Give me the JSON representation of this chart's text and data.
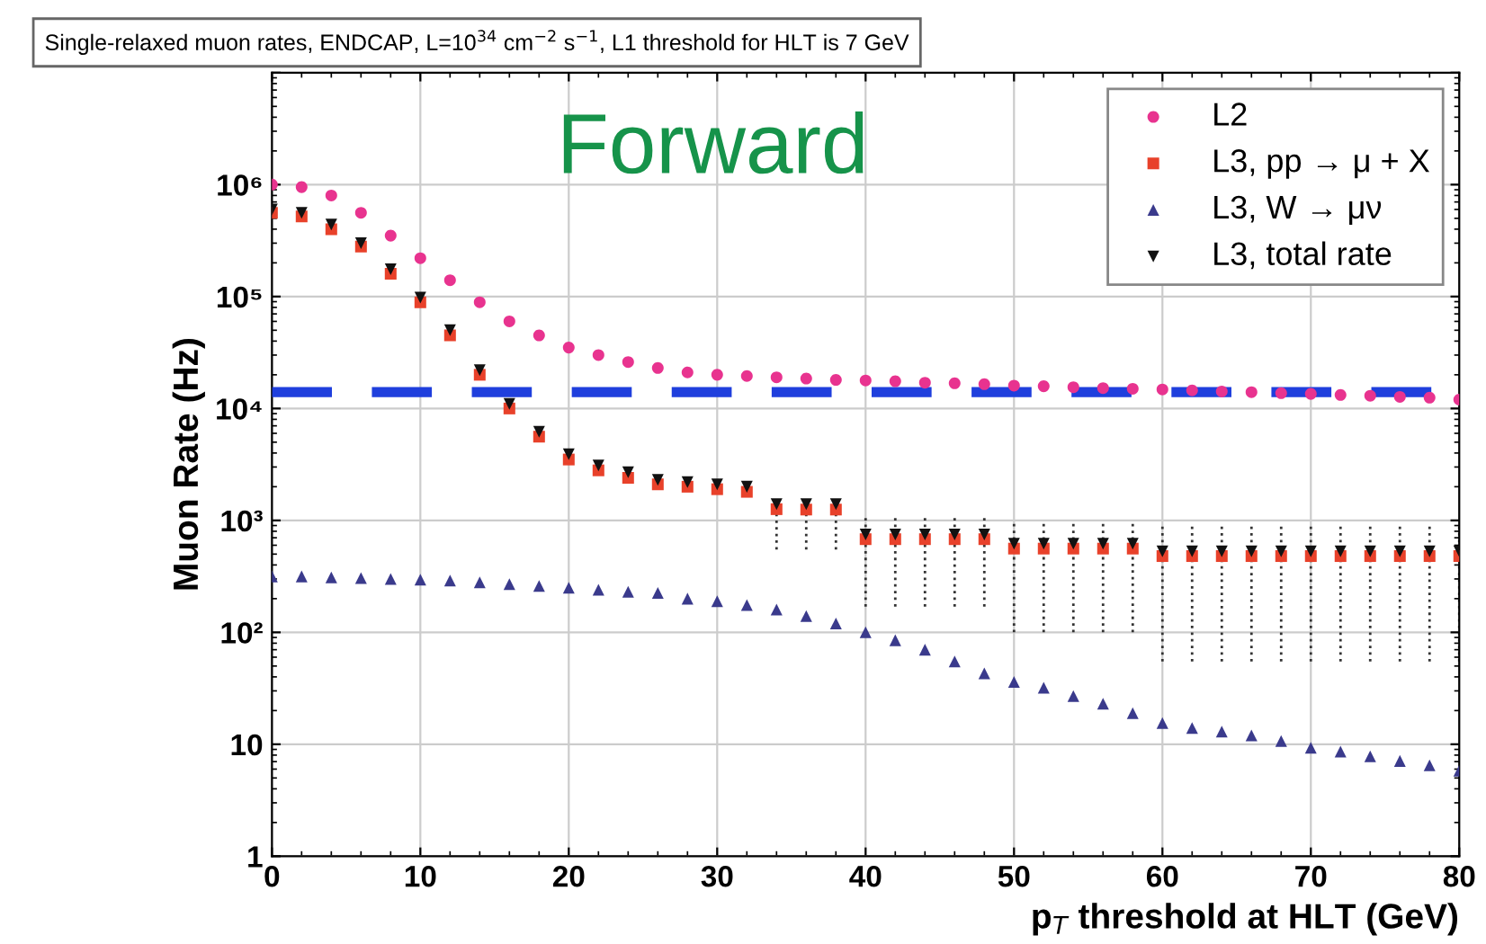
{
  "chart_data": {
    "type": "scatter",
    "title": "Single-relaxed muon rates, ENDCAP, L=10$^{34}$ cm$^{−2}$ s$^{−1}$, L1 threshold for HLT is 7 GeV",
    "xlabel": "p$_{T}$ threshold at HLT (GeV)",
    "ylabel": "Muon Rate (Hz)",
    "annotations": [
      "Forward"
    ],
    "x": [
      0,
      2,
      4,
      6,
      8,
      10,
      12,
      14,
      16,
      18,
      20,
      22,
      24,
      26,
      28,
      30,
      32,
      34,
      36,
      38,
      40,
      42,
      44,
      46,
      48,
      50,
      52,
      54,
      56,
      58,
      60,
      62,
      64,
      66,
      68,
      70,
      72,
      74,
      76,
      78,
      80
    ],
    "series": [
      {
        "name": "L2",
        "color": "#e8338f",
        "marker": "circle",
        "values": [
          1000000,
          950000,
          800000,
          560000,
          350000,
          220000,
          140000,
          89000,
          60000,
          45000,
          35000,
          30000,
          26000,
          23000,
          21000,
          20000,
          19500,
          19000,
          18500,
          18000,
          17800,
          17500,
          17000,
          16800,
          16500,
          16000,
          15800,
          15500,
          15200,
          15000,
          14800,
          14500,
          14200,
          14000,
          13700,
          13500,
          13200,
          13000,
          12700,
          12500,
          12000
        ]
      },
      {
        "name": "L3, pp → μ + X",
        "color": "#e8412a",
        "marker": "square",
        "values": [
          560000,
          520000,
          400000,
          280000,
          160000,
          89000,
          45000,
          20000,
          10000,
          5600,
          3500,
          2800,
          2400,
          2100,
          2000,
          1900,
          1800,
          1260,
          1250,
          1250,
          680,
          680,
          680,
          680,
          680,
          560,
          560,
          560,
          560,
          560,
          480,
          480,
          480,
          480,
          480,
          480,
          480,
          480,
          480,
          480,
          480
        ],
        "errors": [
          null,
          null,
          null,
          null,
          null,
          null,
          null,
          null,
          null,
          null,
          null,
          null,
          null,
          null,
          null,
          null,
          null,
          [
            550,
            1600
          ],
          [
            550,
            1600
          ],
          [
            550,
            1600
          ],
          [
            170,
            1070
          ],
          [
            170,
            1070
          ],
          [
            170,
            1070
          ],
          [
            170,
            1070
          ],
          [
            170,
            1070
          ],
          [
            100,
            950
          ],
          [
            100,
            950
          ],
          [
            100,
            950
          ],
          [
            100,
            950
          ],
          [
            100,
            950
          ],
          [
            55,
            890
          ],
          [
            55,
            890
          ],
          [
            55,
            890
          ],
          [
            55,
            890
          ],
          [
            55,
            890
          ],
          [
            55,
            890
          ],
          [
            55,
            890
          ],
          [
            55,
            890
          ],
          [
            55,
            890
          ],
          [
            55,
            890
          ],
          [
            55,
            890
          ]
        ]
      },
      {
        "name": "L3, W → μν",
        "color": "#3a3a8c",
        "marker": "triangle",
        "values": [
          316,
          316,
          310,
          305,
          300,
          295,
          290,
          280,
          270,
          260,
          250,
          240,
          230,
          225,
          200,
          190,
          175,
          160,
          140,
          120,
          100,
          85,
          70,
          55,
          43,
          36,
          32,
          27,
          23,
          19,
          15.5,
          14,
          13,
          12,
          10.7,
          9.3,
          8.6,
          7.8,
          7.1,
          6.5,
          5.8
        ]
      },
      {
        "name": "L3, total rate",
        "color": "#111111",
        "marker": "triangle-down",
        "values": [
          600000,
          560000,
          440000,
          300000,
          175000,
          98000,
          50000,
          22000,
          11000,
          6200,
          3900,
          3100,
          2700,
          2300,
          2200,
          2100,
          2000,
          1400,
          1400,
          1400,
          750,
          750,
          750,
          750,
          750,
          620,
          620,
          620,
          620,
          620,
          530,
          530,
          530,
          530,
          530,
          530,
          530,
          530,
          530,
          530,
          530
        ]
      }
    ],
    "ref_lines": [
      {
        "axis": "y",
        "value": 14000,
        "color": "#1f3fdd",
        "line_style": "dashed"
      }
    ],
    "log": "y",
    "xlim": [
      0,
      80
    ],
    "ylim": [
      1,
      10000000
    ],
    "xticks": [
      0,
      10,
      20,
      30,
      40,
      50,
      60,
      70,
      80
    ],
    "yticks": [
      1,
      10,
      {
        "value": 100,
        "label": "10²"
      },
      {
        "value": 1000,
        "label": "10³"
      },
      {
        "value": 10000,
        "label": "10⁴"
      },
      {
        "value": 100000,
        "label": "10⁵"
      },
      {
        "value": 1000000,
        "label": "10⁶"
      },
      {
        "value": 10000000,
        "label": null
      }
    ],
    "grid": true,
    "legend": "top right"
  }
}
